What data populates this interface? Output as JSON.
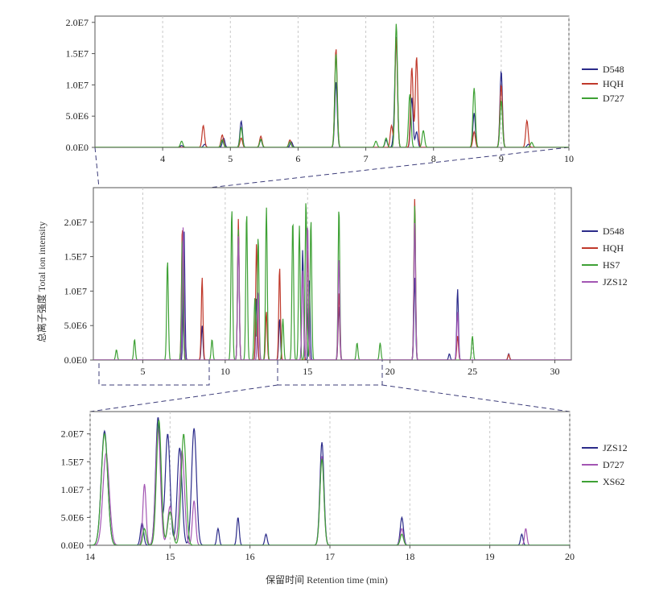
{
  "colors": {
    "D548": "#2b2b8a",
    "HQH": "#c0392b",
    "D727": "#3ea135",
    "HS7": "#3ea135",
    "JZS12": "#a356b3",
    "XS62": "#3ea135",
    "frame": "#555555",
    "grid": "#c8c8c8",
    "zoom": "#3d3d7a"
  },
  "chart_data": [
    {
      "id": "top",
      "type": "line",
      "xlim": [
        3,
        10
      ],
      "ylim": [
        0,
        21000000
      ],
      "x_ticks": [
        "4",
        "5",
        "6",
        "7",
        "8",
        "9",
        "10"
      ],
      "y_ticks": [
        "0.0E0",
        "5.0E6",
        "1.0E7",
        "1.5E7",
        "2.0E7"
      ],
      "legend_position": "right",
      "series": [
        {
          "name": "D548",
          "color_key": "D548",
          "peaks": [
            [
              4.28,
              300000,
              0.018
            ],
            [
              4.62,
              500000,
              0.018
            ],
            [
              4.9,
              1500000,
              0.018
            ],
            [
              5.16,
              4200000,
              0.018
            ],
            [
              5.45,
              1200000,
              0.018
            ],
            [
              5.9,
              900000,
              0.018
            ],
            [
              6.56,
              10500000,
              0.018
            ],
            [
              7.3,
              1200000,
              0.018
            ],
            [
              7.42,
              2500000,
              0.018
            ],
            [
              7.45,
              17000000,
              0.018
            ],
            [
              7.68,
              8000000,
              0.018
            ],
            [
              7.75,
              2500000,
              0.018
            ],
            [
              8.6,
              5500000,
              0.018
            ],
            [
              9.0,
              12200000,
              0.018
            ],
            [
              9.4,
              500000,
              0.018
            ]
          ]
        },
        {
          "name": "HQH",
          "color_key": "HQH",
          "peaks": [
            [
              4.6,
              3500000,
              0.018
            ],
            [
              4.88,
              2000000,
              0.018
            ],
            [
              5.16,
              1500000,
              0.018
            ],
            [
              5.45,
              1800000,
              0.018
            ],
            [
              5.88,
              1200000,
              0.018
            ],
            [
              6.56,
              15800000,
              0.018
            ],
            [
              7.38,
              3500000,
              0.018
            ],
            [
              7.45,
              17500000,
              0.018
            ],
            [
              7.68,
              12800000,
              0.018
            ],
            [
              7.75,
              14500000,
              0.018
            ],
            [
              8.6,
              2500000,
              0.018
            ],
            [
              9.0,
              10000000,
              0.018
            ],
            [
              9.38,
              4300000,
              0.018
            ]
          ]
        },
        {
          "name": "D727",
          "color_key": "D727",
          "peaks": [
            [
              4.28,
              1000000,
              0.018
            ],
            [
              4.88,
              1200000,
              0.018
            ],
            [
              5.16,
              3200000,
              0.018
            ],
            [
              5.45,
              1300000,
              0.018
            ],
            [
              5.88,
              900000,
              0.018
            ],
            [
              6.56,
              15000000,
              0.018
            ],
            [
              7.15,
              1000000,
              0.018
            ],
            [
              7.3,
              1500000,
              0.018
            ],
            [
              7.45,
              19800000,
              0.018
            ],
            [
              7.65,
              8500000,
              0.018
            ],
            [
              7.85,
              2700000,
              0.018
            ],
            [
              8.6,
              9500000,
              0.018
            ],
            [
              9.0,
              7500000,
              0.018
            ],
            [
              9.45,
              800000,
              0.018
            ]
          ]
        }
      ]
    },
    {
      "id": "middle",
      "type": "line",
      "xlim": [
        2,
        31
      ],
      "ylim": [
        0,
        25000000
      ],
      "x_ticks": [
        "5",
        "10",
        "15",
        "20",
        "25",
        "30"
      ],
      "y_ticks": [
        "0.0E0",
        "5.0E6",
        "1.0E7",
        "1.5E7",
        "2.0E7"
      ],
      "ylabel": "总离子强度 Total ion intensity",
      "legend_position": "right",
      "series": [
        {
          "name": "D548",
          "color_key": "D548",
          "peaks": [
            [
              7.5,
              19000000,
              0.05
            ],
            [
              8.6,
              5000000,
              0.05
            ],
            [
              10.8,
              19000000,
              0.05
            ],
            [
              11.9,
              9000000,
              0.05
            ],
            [
              13.3,
              6000000,
              0.05
            ],
            [
              14.7,
              16000000,
              0.05
            ],
            [
              15.1,
              12000000,
              0.05
            ],
            [
              16.9,
              8000000,
              0.05
            ],
            [
              21.5,
              12000000,
              0.05
            ],
            [
              24.1,
              10300000,
              0.05
            ],
            [
              23.6,
              900000,
              0.05
            ],
            [
              27.2,
              900000,
              0.05
            ]
          ]
        },
        {
          "name": "HQH",
          "color_key": "HQH",
          "peaks": [
            [
              7.4,
              19500000,
              0.05
            ],
            [
              8.6,
              12000000,
              0.05
            ],
            [
              10.8,
              20500000,
              0.05
            ],
            [
              11.9,
              17000000,
              0.05
            ],
            [
              12.5,
              7000000,
              0.05
            ],
            [
              13.3,
              13500000,
              0.05
            ],
            [
              15.0,
              16500000,
              0.05
            ],
            [
              16.9,
              10000000,
              0.05
            ],
            [
              21.5,
              23500000,
              0.05
            ],
            [
              24.1,
              3500000,
              0.05
            ],
            [
              27.2,
              800000,
              0.05
            ]
          ]
        },
        {
          "name": "HS7",
          "color_key": "HS7",
          "peaks": [
            [
              3.4,
              1500000,
              0.05
            ],
            [
              4.5,
              3000000,
              0.05
            ],
            [
              6.5,
              14500000,
              0.05
            ],
            [
              7.4,
              18000000,
              0.05
            ],
            [
              9.2,
              3000000,
              0.05
            ],
            [
              10.4,
              22000000,
              0.05
            ],
            [
              10.8,
              19000000,
              0.05
            ],
            [
              11.3,
              21500000,
              0.05
            ],
            [
              11.8,
              9000000,
              0.05
            ],
            [
              12.0,
              18000000,
              0.05
            ],
            [
              12.5,
              22200000,
              0.05
            ],
            [
              13.5,
              6000000,
              0.05
            ],
            [
              14.1,
              20500000,
              0.05
            ],
            [
              14.5,
              19500000,
              0.05
            ],
            [
              14.9,
              23300000,
              0.05
            ],
            [
              15.2,
              20500000,
              0.05
            ],
            [
              16.9,
              22300000,
              0.05
            ],
            [
              18.0,
              2500000,
              0.05
            ],
            [
              19.4,
              2500000,
              0.05
            ],
            [
              21.5,
              22500000,
              0.05
            ],
            [
              25.0,
              3500000,
              0.05
            ]
          ]
        },
        {
          "name": "JZS12",
          "color_key": "JZS12",
          "peaks": [
            [
              7.45,
              19300000,
              0.05
            ],
            [
              10.8,
              18000000,
              0.05
            ],
            [
              12.0,
              10000000,
              0.05
            ],
            [
              14.7,
              13000000,
              0.05
            ],
            [
              15.0,
              20000000,
              0.05
            ],
            [
              16.9,
              15000000,
              0.05
            ],
            [
              21.5,
              20000000,
              0.05
            ],
            [
              24.1,
              7000000,
              0.05
            ]
          ]
        }
      ]
    },
    {
      "id": "bottom",
      "type": "line",
      "xlim": [
        14,
        20
      ],
      "ylim": [
        0,
        24000000
      ],
      "x_ticks": [
        "14",
        "15",
        "16",
        "17",
        "18",
        "19",
        "20"
      ],
      "y_ticks": [
        "0.0E0",
        "5.0E6",
        "1.0E7",
        "1.5E7",
        "2.0E7"
      ],
      "xlabel": "保留时间 Retention time (min)",
      "legend_position": "right",
      "series": [
        {
          "name": "JZS12",
          "color_key": "D548",
          "peaks": [
            [
              14.18,
              20500000,
              0.04
            ],
            [
              14.65,
              4000000,
              0.02
            ],
            [
              14.85,
              23000000,
              0.03
            ],
            [
              14.97,
              20000000,
              0.03
            ],
            [
              15.12,
              17500000,
              0.03
            ],
            [
              15.3,
              21000000,
              0.03
            ],
            [
              15.6,
              3000000,
              0.015
            ],
            [
              15.85,
              5000000,
              0.015
            ],
            [
              16.2,
              2000000,
              0.015
            ],
            [
              16.9,
              18500000,
              0.025
            ],
            [
              17.9,
              5000000,
              0.02
            ],
            [
              19.4,
              2000000,
              0.015
            ]
          ]
        },
        {
          "name": "D727",
          "color_key": "JZS12",
          "peaks": [
            [
              14.2,
              16500000,
              0.04
            ],
            [
              14.68,
              11000000,
              0.02
            ],
            [
              14.85,
              21000000,
              0.03
            ],
            [
              15.0,
              7000000,
              0.03
            ],
            [
              15.15,
              17000000,
              0.03
            ],
            [
              15.3,
              8000000,
              0.02
            ],
            [
              16.9,
              16000000,
              0.025
            ],
            [
              17.9,
              3000000,
              0.02
            ],
            [
              19.45,
              3000000,
              0.015
            ]
          ]
        },
        {
          "name": "XS62",
          "color_key": "D727",
          "peaks": [
            [
              14.18,
              20000000,
              0.04
            ],
            [
              14.68,
              3000000,
              0.02
            ],
            [
              14.86,
              22500000,
              0.03
            ],
            [
              15.0,
              6000000,
              0.03
            ],
            [
              15.17,
              20000000,
              0.03
            ],
            [
              16.9,
              15500000,
              0.025
            ],
            [
              17.9,
              2000000,
              0.02
            ]
          ]
        }
      ]
    }
  ]
}
